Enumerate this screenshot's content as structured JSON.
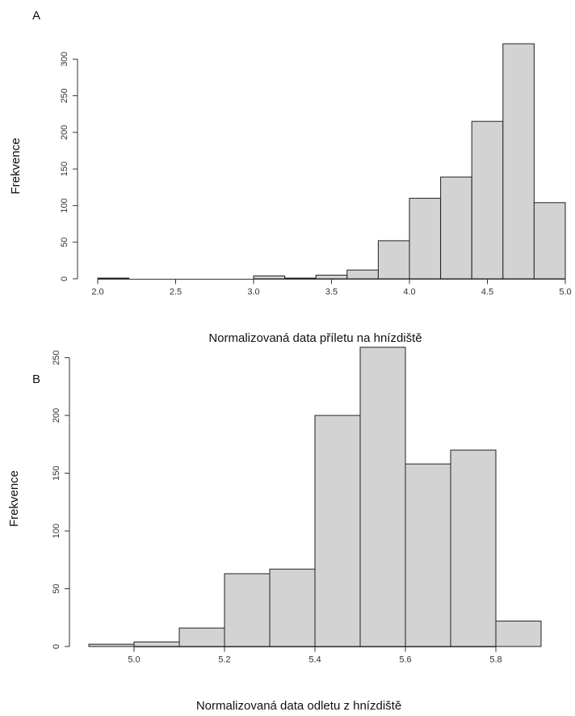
{
  "chart_data": [
    {
      "type": "histogram",
      "label": "A",
      "x_label": "Normalizovaná data příletu na hnízdiště",
      "y_label": "Frekvence",
      "bins": [
        2.0,
        2.2,
        2.4,
        2.6,
        2.8,
        3.0,
        3.2,
        3.4,
        3.6,
        3.8,
        4.0,
        4.2,
        4.4,
        4.6,
        4.8,
        5.0
      ],
      "values": [
        1,
        0,
        0,
        0,
        0,
        4,
        1,
        5,
        12,
        52,
        110,
        139,
        215,
        321,
        104
      ],
      "color": "#d3d3d3",
      "xlim": [
        2.0,
        5.0
      ],
      "xticks": [
        {
          "value": 2.0,
          "label": "2.0"
        },
        {
          "value": 2.5,
          "label": "2.5"
        },
        {
          "value": 3.0,
          "label": "3.0"
        },
        {
          "value": 3.5,
          "label": "3.5"
        },
        {
          "value": 4.0,
          "label": "4.0"
        },
        {
          "value": 4.5,
          "label": "4.5"
        },
        {
          "value": 5.0,
          "label": "5.0"
        }
      ],
      "ylim": [
        0,
        330
      ],
      "yticks": [
        0,
        50,
        100,
        150,
        200,
        250,
        300
      ]
    },
    {
      "type": "histogram",
      "label": "B",
      "x_label": "Normalizovaná data odletu z hnízdiště",
      "y_label": "Frekvence",
      "bins": [
        4.9,
        5.0,
        5.1,
        5.2,
        5.3,
        5.4,
        5.5,
        5.6,
        5.7,
        5.8,
        5.9
      ],
      "values": [
        2,
        4,
        16,
        63,
        67,
        200,
        259,
        158,
        170,
        22
      ],
      "color": "#d3d3d3",
      "xlim": [
        4.9,
        5.9
      ],
      "xticks": [
        {
          "value": 5.0,
          "label": "5.0"
        },
        {
          "value": 5.2,
          "label": "5.2"
        },
        {
          "value": 5.4,
          "label": "5.4"
        },
        {
          "value": 5.6,
          "label": "5.6"
        },
        {
          "value": 5.8,
          "label": "5.8"
        }
      ],
      "ylim": [
        0,
        270
      ],
      "yticks": [
        0,
        50,
        100,
        150,
        200,
        250
      ]
    }
  ]
}
